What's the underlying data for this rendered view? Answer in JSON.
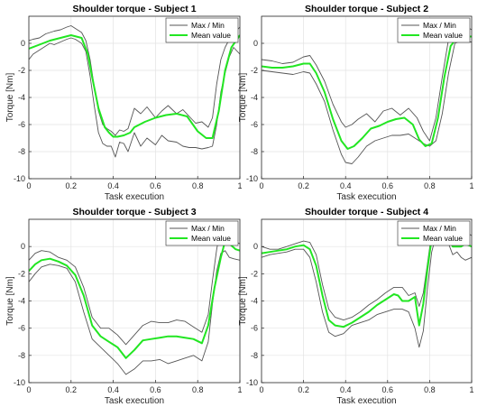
{
  "colors": {
    "envelope": "#555555",
    "mean": "#22e622",
    "grid": "#e3e3e3",
    "axis": "#262626"
  },
  "chart_data": [
    {
      "type": "line",
      "title": "Shoulder torque - Subject 1",
      "xlabel": "Task execution",
      "ylabel": "Torque [Nm]",
      "xlim": [
        0,
        1
      ],
      "ylim": [
        -10,
        2
      ],
      "xticks": [
        0,
        0.2,
        0.4,
        0.6,
        0.8,
        1
      ],
      "xtick_labels": [
        "0",
        "0.2",
        "0.4",
        "0.6",
        "0.8",
        "1"
      ],
      "yticks": [
        -10,
        -8,
        -6,
        -4,
        -2,
        0
      ],
      "ytick_labels": [
        "-10",
        "-8",
        "-6",
        "-4",
        "-2",
        "0"
      ],
      "grid": true,
      "legend": "top-right",
      "series": [
        {
          "name": "Max / Min",
          "role": "envelope",
          "x": [
            0,
            0.02,
            0.05,
            0.08,
            0.1,
            0.12,
            0.15,
            0.18,
            0.2,
            0.22,
            0.25,
            0.27,
            0.29,
            0.31,
            0.33,
            0.35,
            0.37,
            0.39,
            0.41,
            0.43,
            0.45,
            0.47,
            0.5,
            0.53,
            0.56,
            0.6,
            0.63,
            0.66,
            0.7,
            0.73,
            0.76,
            0.79,
            0.82,
            0.85,
            0.87,
            0.89,
            0.91,
            0.93,
            0.95,
            0.97,
            1
          ],
          "y": [
            0.2,
            0.3,
            0.4,
            0.7,
            0.8,
            0.9,
            1.0,
            1.2,
            1.3,
            1.1,
            0.8,
            0.2,
            -1.2,
            -3.2,
            -5.0,
            -6.0,
            -6.3,
            -6.5,
            -6.8,
            -6.4,
            -6.5,
            -6.3,
            -4.8,
            -5.2,
            -4.7,
            -5.5,
            -5.0,
            -4.6,
            -5.2,
            -4.9,
            -5.4,
            -5.9,
            -5.8,
            -6.2,
            -5.5,
            -3.0,
            -1.2,
            -0.3,
            0.3,
            0.7,
            1.2
          ],
          "y2": [
            -1.2,
            -0.8,
            -0.5,
            -0.2,
            0.0,
            -0.1,
            0.1,
            0.3,
            0.4,
            0.3,
            0.0,
            -0.6,
            -2.4,
            -4.6,
            -6.6,
            -7.4,
            -7.6,
            -7.6,
            -8.4,
            -7.3,
            -7.4,
            -8.0,
            -6.6,
            -7.6,
            -7.0,
            -7.5,
            -6.8,
            -7.2,
            -7.3,
            -7.6,
            -7.7,
            -7.7,
            -7.8,
            -7.7,
            -7.6,
            -6.0,
            -3.6,
            -2.2,
            -1.0,
            -0.3,
            -0.8
          ]
        },
        {
          "name": "Mean value",
          "role": "mean",
          "x": [
            0,
            0.05,
            0.1,
            0.15,
            0.2,
            0.25,
            0.28,
            0.3,
            0.33,
            0.36,
            0.38,
            0.4,
            0.42,
            0.45,
            0.48,
            0.5,
            0.55,
            0.6,
            0.65,
            0.7,
            0.75,
            0.8,
            0.84,
            0.87,
            0.9,
            0.93,
            0.96,
            1
          ],
          "y": [
            -0.4,
            -0.1,
            0.2,
            0.4,
            0.6,
            0.4,
            -0.8,
            -2.5,
            -4.8,
            -6.2,
            -6.6,
            -6.9,
            -6.9,
            -6.8,
            -6.6,
            -6.2,
            -5.8,
            -5.5,
            -5.3,
            -5.2,
            -5.4,
            -6.5,
            -7.0,
            -7.0,
            -5.0,
            -2.0,
            -0.3,
            0.6
          ]
        }
      ]
    },
    {
      "type": "line",
      "title": "Shoulder torque - Subject 2",
      "xlabel": "Task execution",
      "ylabel": "Torque [Nm]",
      "xlim": [
        0,
        1
      ],
      "ylim": [
        -10,
        2
      ],
      "xticks": [
        0,
        0.2,
        0.4,
        0.6,
        0.8,
        1
      ],
      "xtick_labels": [
        "0",
        "0.2",
        "0.4",
        "0.6",
        "0.8",
        "1"
      ],
      "yticks": [
        -10,
        -8,
        -6,
        -4,
        -2,
        0
      ],
      "ytick_labels": [
        "-10",
        "-8",
        "-6",
        "-4",
        "-2",
        "0"
      ],
      "grid": true,
      "legend": "top-right",
      "series": [
        {
          "name": "Max / Min",
          "role": "envelope",
          "x": [
            0,
            0.05,
            0.1,
            0.15,
            0.2,
            0.23,
            0.26,
            0.3,
            0.34,
            0.38,
            0.4,
            0.43,
            0.46,
            0.5,
            0.54,
            0.58,
            0.62,
            0.66,
            0.7,
            0.74,
            0.77,
            0.8,
            0.83,
            0.86,
            0.89,
            0.92,
            0.95,
            0.98,
            1
          ],
          "y": [
            -1.2,
            -1.3,
            -1.5,
            -1.4,
            -1.0,
            -0.9,
            -1.6,
            -2.8,
            -4.5,
            -5.8,
            -6.2,
            -6.0,
            -5.6,
            -5.2,
            -5.8,
            -5.0,
            -4.8,
            -5.3,
            -4.8,
            -5.5,
            -6.5,
            -7.2,
            -5.5,
            -2.5,
            0.3,
            1.1,
            1.3,
            1.2,
            1.0
          ],
          "y2": [
            -2.0,
            -2.1,
            -2.2,
            -2.3,
            -2.1,
            -2.2,
            -3.0,
            -4.3,
            -6.4,
            -8.2,
            -8.8,
            -8.9,
            -8.4,
            -7.6,
            -7.2,
            -7.0,
            -6.8,
            -6.8,
            -6.7,
            -7.1,
            -7.4,
            -7.6,
            -7.2,
            -5.2,
            -2.2,
            0.0,
            0.2,
            0.1,
            0.1
          ]
        },
        {
          "name": "Mean value",
          "role": "mean",
          "x": [
            0,
            0.05,
            0.1,
            0.15,
            0.2,
            0.23,
            0.26,
            0.3,
            0.34,
            0.38,
            0.41,
            0.44,
            0.48,
            0.52,
            0.56,
            0.6,
            0.64,
            0.68,
            0.72,
            0.75,
            0.78,
            0.81,
            0.84,
            0.87,
            0.9,
            0.93,
            0.96,
            1
          ],
          "y": [
            -1.7,
            -1.8,
            -1.8,
            -1.7,
            -1.5,
            -1.5,
            -2.2,
            -3.6,
            -5.6,
            -7.2,
            -7.8,
            -7.6,
            -7.0,
            -6.3,
            -6.1,
            -5.8,
            -5.6,
            -5.5,
            -6.0,
            -7.1,
            -7.6,
            -7.4,
            -5.5,
            -2.5,
            -0.2,
            0.4,
            0.5,
            0.5
          ]
        }
      ]
    },
    {
      "type": "line",
      "title": "Shoulder torque - Subject 3",
      "xlabel": "Task execution",
      "ylabel": "Torque [Nm]",
      "xlim": [
        0,
        1
      ],
      "ylim": [
        -10,
        2
      ],
      "xticks": [
        0,
        0.2,
        0.4,
        0.6,
        0.8,
        1
      ],
      "xtick_labels": [
        "0",
        "0.2",
        "0.4",
        "0.6",
        "0.8",
        "1"
      ],
      "yticks": [
        -10,
        -8,
        -6,
        -4,
        -2,
        0
      ],
      "ytick_labels": [
        "-10",
        "-8",
        "-6",
        "-4",
        "-2",
        "0"
      ],
      "grid": true,
      "legend": "top-right",
      "series": [
        {
          "name": "Max / Min",
          "role": "envelope",
          "x": [
            0,
            0.03,
            0.06,
            0.1,
            0.14,
            0.18,
            0.22,
            0.26,
            0.3,
            0.34,
            0.38,
            0.42,
            0.46,
            0.5,
            0.54,
            0.58,
            0.62,
            0.66,
            0.7,
            0.74,
            0.78,
            0.82,
            0.85,
            0.87,
            0.89,
            0.91,
            0.93,
            0.95,
            0.97,
            1
          ],
          "y": [
            -1.0,
            -0.5,
            -0.3,
            -0.4,
            -0.8,
            -1.0,
            -1.5,
            -3.0,
            -5.2,
            -6.0,
            -6.0,
            -6.5,
            -7.2,
            -6.5,
            -5.8,
            -5.5,
            -5.6,
            -5.6,
            -5.4,
            -5.5,
            -5.9,
            -6.3,
            -5.0,
            -2.5,
            -0.2,
            1.4,
            1.8,
            1.0,
            0.4,
            0.2
          ],
          "y2": [
            -2.6,
            -2.0,
            -1.5,
            -1.3,
            -1.4,
            -1.6,
            -2.6,
            -4.8,
            -6.8,
            -7.4,
            -8.0,
            -8.6,
            -9.4,
            -9.0,
            -8.4,
            -8.4,
            -8.3,
            -8.6,
            -8.4,
            -8.2,
            -8.0,
            -8.4,
            -7.0,
            -4.2,
            -1.8,
            -0.5,
            -0.3,
            -0.8,
            -0.9,
            -1.0
          ]
        },
        {
          "name": "Mean value",
          "role": "mean",
          "x": [
            0,
            0.03,
            0.06,
            0.1,
            0.14,
            0.18,
            0.22,
            0.26,
            0.3,
            0.34,
            0.38,
            0.42,
            0.46,
            0.5,
            0.54,
            0.58,
            0.62,
            0.66,
            0.7,
            0.74,
            0.78,
            0.82,
            0.85,
            0.88,
            0.91,
            0.93,
            0.95,
            0.98,
            1
          ],
          "y": [
            -1.8,
            -1.3,
            -1.0,
            -0.9,
            -1.1,
            -1.4,
            -2.1,
            -3.6,
            -5.8,
            -6.6,
            -7.0,
            -7.4,
            -8.2,
            -7.6,
            -6.9,
            -6.8,
            -6.7,
            -6.6,
            -6.6,
            -6.7,
            -6.8,
            -7.1,
            -5.8,
            -3.0,
            -0.8,
            0.4,
            0.2,
            -0.2,
            -0.3
          ]
        }
      ]
    },
    {
      "type": "line",
      "title": "Shoulder torque - Subject 4",
      "xlabel": "Task execution",
      "ylabel": "Torque [Nm]",
      "xlim": [
        0,
        1
      ],
      "ylim": [
        -10,
        2
      ],
      "xticks": [
        0,
        0.2,
        0.4,
        0.6,
        0.8,
        1
      ],
      "xtick_labels": [
        "0",
        "0.2",
        "0.4",
        "0.6",
        "0.8",
        "1"
      ],
      "yticks": [
        -10,
        -8,
        -6,
        -4,
        -2,
        0
      ],
      "ytick_labels": [
        "-10",
        "-8",
        "-6",
        "-4",
        "-2",
        "0"
      ],
      "grid": true,
      "legend": "top-right",
      "series": [
        {
          "name": "Max / Min",
          "role": "envelope",
          "x": [
            0,
            0.04,
            0.08,
            0.12,
            0.16,
            0.2,
            0.23,
            0.26,
            0.29,
            0.32,
            0.35,
            0.39,
            0.43,
            0.47,
            0.51,
            0.55,
            0.59,
            0.63,
            0.67,
            0.7,
            0.73,
            0.75,
            0.77,
            0.79,
            0.81,
            0.83,
            0.85,
            0.87,
            0.89,
            0.91,
            0.93,
            0.95,
            0.97,
            1
          ],
          "y": [
            0.0,
            -0.2,
            -0.2,
            0.0,
            0.2,
            0.4,
            0.3,
            -0.6,
            -2.8,
            -4.6,
            -5.2,
            -5.4,
            -5.2,
            -4.8,
            -4.3,
            -3.9,
            -3.4,
            -3.0,
            -3.0,
            -3.6,
            -3.4,
            -4.4,
            -3.4,
            -1.2,
            1.0,
            1.8,
            1.6,
            1.4,
            1.2,
            1.0,
            1.1,
            1.2,
            1.1,
            0.8
          ],
          "y2": [
            -0.8,
            -0.6,
            -0.5,
            -0.4,
            -0.2,
            -0.2,
            -0.8,
            -2.6,
            -4.8,
            -6.3,
            -6.6,
            -6.4,
            -5.8,
            -5.6,
            -5.4,
            -5.0,
            -4.8,
            -4.6,
            -4.6,
            -4.8,
            -6.0,
            -7.4,
            -6.2,
            -3.0,
            -0.4,
            0.8,
            1.8,
            1.4,
            0.2,
            -0.6,
            -0.4,
            -0.8,
            -1.0,
            -0.8
          ]
        },
        {
          "name": "Mean value",
          "role": "mean",
          "x": [
            0,
            0.04,
            0.08,
            0.12,
            0.16,
            0.2,
            0.23,
            0.26,
            0.29,
            0.32,
            0.35,
            0.39,
            0.43,
            0.47,
            0.51,
            0.55,
            0.59,
            0.63,
            0.65,
            0.67,
            0.7,
            0.73,
            0.75,
            0.77,
            0.79,
            0.81,
            0.83,
            0.85,
            0.87,
            0.89,
            0.91,
            0.93,
            0.95,
            0.97,
            1
          ],
          "y": [
            -0.5,
            -0.4,
            -0.3,
            -0.2,
            0.0,
            0.1,
            -0.2,
            -1.4,
            -3.6,
            -5.4,
            -5.8,
            -5.9,
            -5.6,
            -5.2,
            -4.8,
            -4.3,
            -3.9,
            -3.5,
            -3.6,
            -4.0,
            -4.0,
            -3.7,
            -5.8,
            -4.2,
            -1.6,
            0.6,
            1.4,
            1.6,
            1.4,
            0.6,
            0.0,
            0.0,
            0.0,
            0.2,
            0.0
          ]
        }
      ]
    }
  ]
}
